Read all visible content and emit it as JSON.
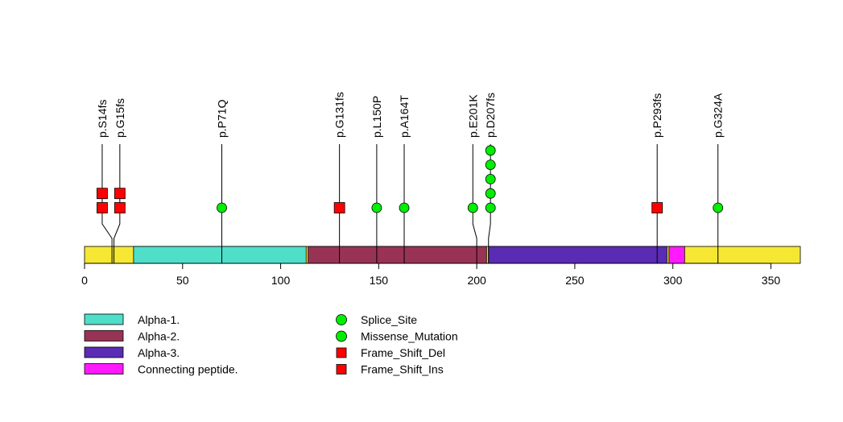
{
  "chart_data": {
    "type": "lollipop",
    "title": "",
    "xlabel": "",
    "ylabel": "",
    "xlim": [
      0,
      365
    ],
    "x_ticks": [
      0,
      50,
      100,
      150,
      200,
      250,
      300,
      350
    ],
    "backbone_color": "#F6E733",
    "domains": [
      {
        "label": "Alpha-1.",
        "start": 25,
        "end": 113,
        "color": "#4FDEC8"
      },
      {
        "label": "Alpha-2.",
        "start": 114,
        "end": 205,
        "color": "#993355"
      },
      {
        "label": "Alpha-3.",
        "start": 206,
        "end": 297,
        "color": "#5A2BB3"
      },
      {
        "label": "Connecting peptide.",
        "start": 298,
        "end": 306,
        "color": "#FF1AFF"
      }
    ],
    "mutations": [
      {
        "label": "p.S14fs",
        "position": 14,
        "display_position": 9,
        "count": 2,
        "shape": "square",
        "color": "#FF0000"
      },
      {
        "label": "p.G15fs",
        "position": 15,
        "display_position": 18,
        "count": 2,
        "shape": "square",
        "color": "#FF0000"
      },
      {
        "label": "p.P71Q",
        "position": 70,
        "display_position": 70,
        "count": 1,
        "shape": "circle",
        "color": "#00EE00"
      },
      {
        "label": "p.G131fs",
        "position": 130,
        "display_position": 130,
        "count": 1,
        "shape": "square",
        "color": "#FF0000"
      },
      {
        "label": "p.L150P",
        "position": 149,
        "display_position": 149,
        "count": 1,
        "shape": "circle",
        "color": "#00EE00"
      },
      {
        "label": "p.A164T",
        "position": 163,
        "display_position": 163,
        "count": 1,
        "shape": "circle",
        "color": "#00EE00"
      },
      {
        "label": "p.E201K",
        "position": 200,
        "display_position": 198,
        "count": 1,
        "shape": "circle",
        "color": "#00EE00"
      },
      {
        "label": "p.D207fs",
        "position": 206,
        "display_position": 207,
        "count": 5,
        "shape": "circle",
        "color": "#00EE00"
      },
      {
        "label": "p.P293fs",
        "position": 292,
        "display_position": 292,
        "count": 1,
        "shape": "square",
        "color": "#FF0000"
      },
      {
        "label": "p.G324A",
        "position": 323,
        "display_position": 323,
        "count": 1,
        "shape": "circle",
        "color": "#00EE00"
      }
    ],
    "legend_domains": [
      {
        "label": "Alpha-1.",
        "color": "#4FDEC8"
      },
      {
        "label": "Alpha-2.",
        "color": "#993355"
      },
      {
        "label": "Alpha-3.",
        "color": "#5A2BB3"
      },
      {
        "label": "Connecting peptide.",
        "color": "#FF1AFF"
      }
    ],
    "legend_mutations": [
      {
        "label": "Splice_Site",
        "shape": "circle",
        "color": "#00EE00"
      },
      {
        "label": "Missense_Mutation",
        "shape": "circle",
        "color": "#00EE00"
      },
      {
        "label": "Frame_Shift_Del",
        "shape": "square",
        "color": "#FF0000"
      },
      {
        "label": "Frame_Shift_Ins",
        "shape": "square",
        "color": "#FF0000"
      }
    ]
  }
}
